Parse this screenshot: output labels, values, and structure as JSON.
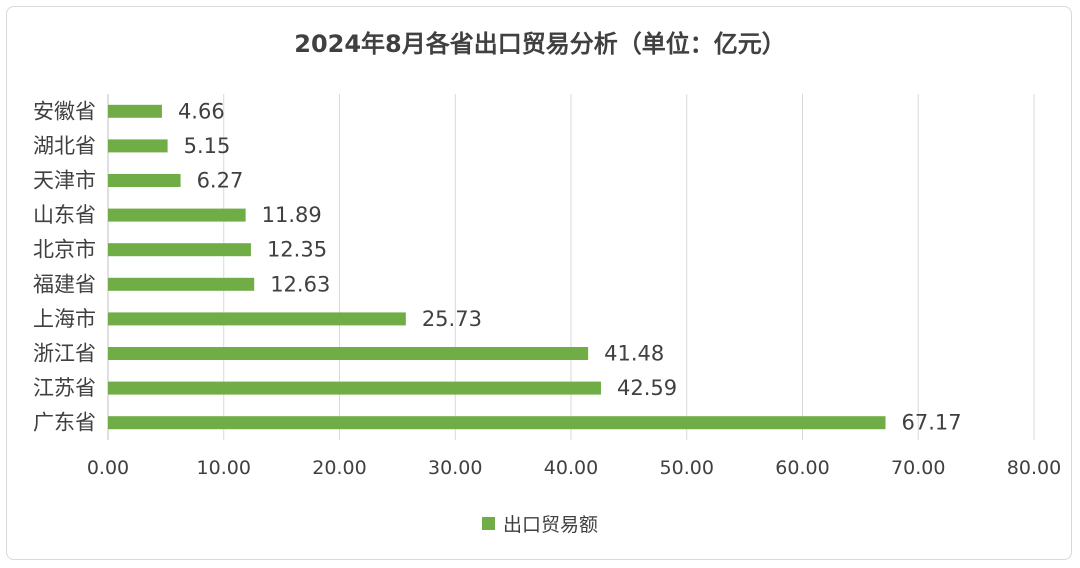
{
  "chart_data": {
    "type": "bar",
    "orientation": "horizontal",
    "title": "2024年8月各省出口贸易分析（单位：亿元）",
    "categories": [
      "安徽省",
      "湖北省",
      "天津市",
      "山东省",
      "北京市",
      "福建省",
      "上海市",
      "浙江省",
      "江苏省",
      "广东省"
    ],
    "series": [
      {
        "name": "出口贸易额",
        "values": [
          4.66,
          5.15,
          6.27,
          11.89,
          12.35,
          12.63,
          25.73,
          41.48,
          42.59,
          67.17
        ],
        "value_labels": [
          "4.66",
          "5.15",
          "6.27",
          "11.89",
          "12.35",
          "12.63",
          "25.73",
          "41.48",
          "42.59",
          "67.17"
        ]
      }
    ],
    "xlim": [
      0,
      80
    ],
    "xticks": [
      "0.00",
      "10.00",
      "20.00",
      "30.00",
      "40.00",
      "50.00",
      "60.00",
      "70.00",
      "80.00"
    ],
    "grid": true,
    "legend_position": "bottom",
    "bar_color": "#70ad47"
  }
}
